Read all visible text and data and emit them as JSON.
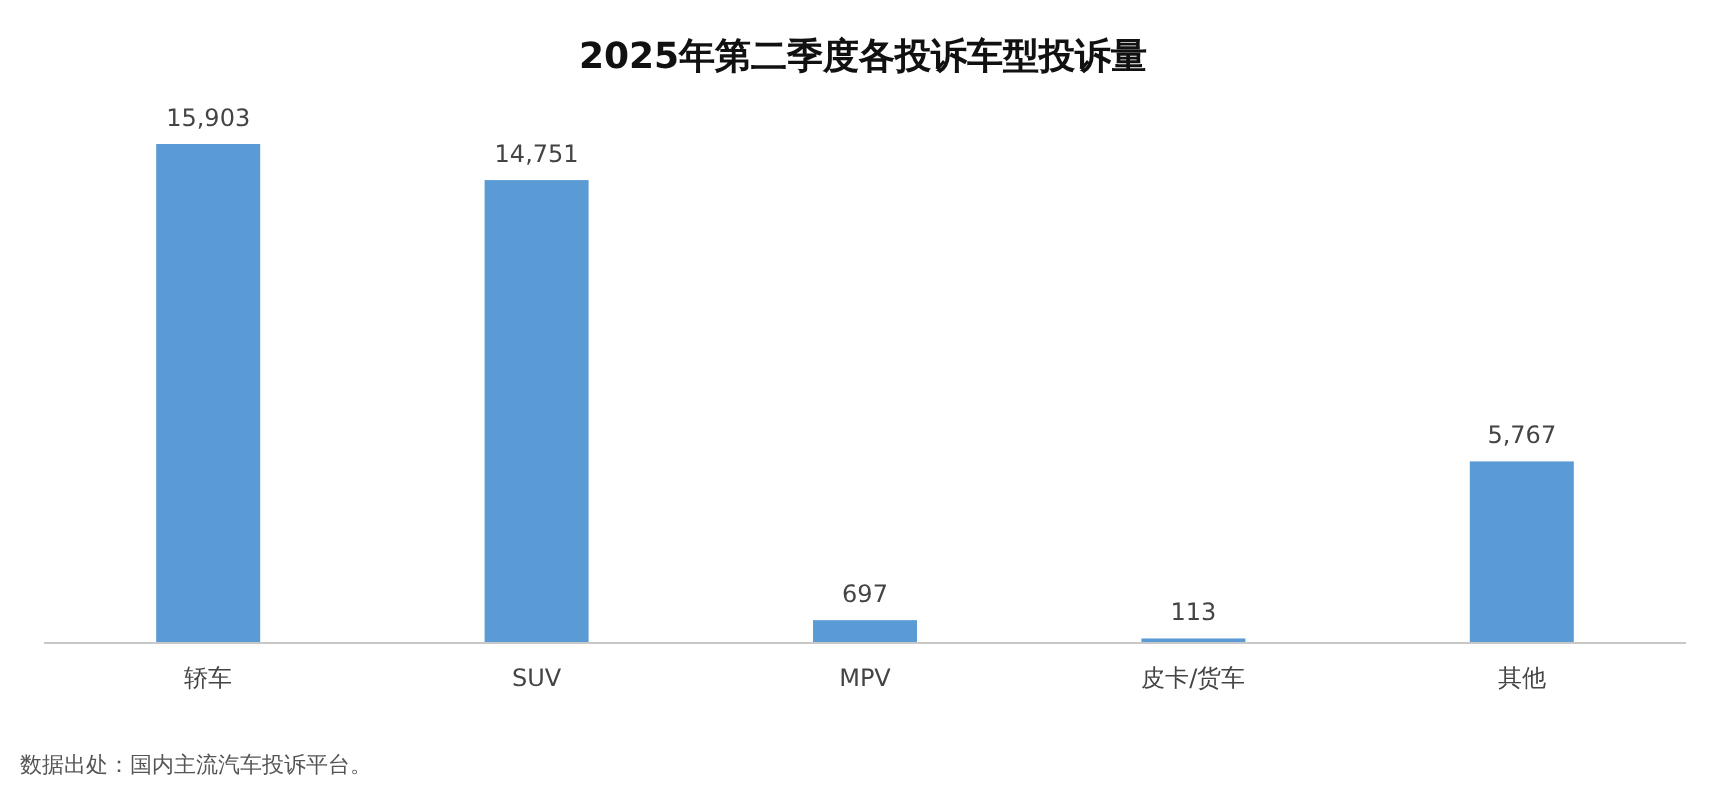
{
  "chart_data": {
    "type": "bar",
    "title": "2025年第二季度各投诉车型投诉量",
    "categories": [
      "轿车",
      "SUV",
      "MPV",
      "皮卡/货车",
      "其他"
    ],
    "values": [
      15903,
      14751,
      697,
      113,
      5767
    ],
    "color": "#5b9bd5",
    "value_labels": [
      "15,903",
      "14,751",
      "697",
      "113",
      "5,767"
    ],
    "annotations": [
      "数据出处：国内主流汽车投诉平台。"
    ]
  }
}
